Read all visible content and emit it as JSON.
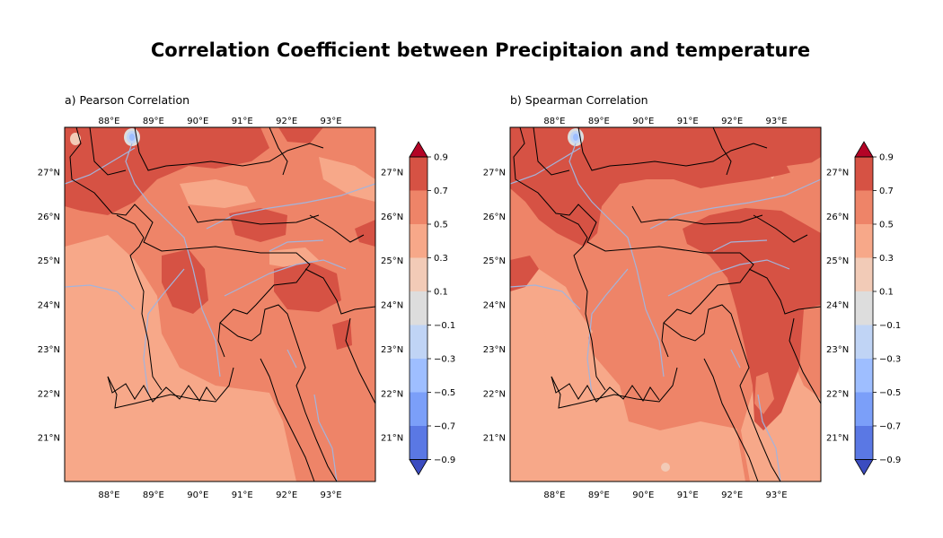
{
  "title": "Correlation Coefficient between Precipitaion and temperature",
  "colors": {
    "levels": [
      "#3b4cc0",
      "#5a78e4",
      "#7b9ff9",
      "#9ebeff",
      "#c0d4f5",
      "#dddddd",
      "#f2cbb7",
      "#f7a889",
      "#ee8468",
      "#d65244",
      "#b40426"
    ],
    "boundaries": "#000000",
    "rivers": "#a3b4dc"
  },
  "chart_data": [
    {
      "type": "heatmap",
      "title": "a) Pearson Correlation",
      "x_ticks": [
        "88°E",
        "89°E",
        "90°E",
        "91°E",
        "92°E",
        "93°E"
      ],
      "y_ticks": [
        "27°N",
        "26°N",
        "25°N",
        "24°N",
        "23°N",
        "22°N",
        "21°N"
      ],
      "xlim": [
        87.0,
        94.0
      ],
      "ylim": [
        20.0,
        28.0
      ],
      "colorbar": {
        "ticks": [
          "0.9",
          "0.7",
          "0.5",
          "0.3",
          "0.1",
          "−0.1",
          "−0.3",
          "−0.5",
          "−0.7",
          "−0.9"
        ],
        "range": [
          -0.9,
          0.9
        ],
        "extend": "both"
      },
      "dominant_range": [
        0.3,
        0.7
      ],
      "min_region": {
        "lat": 27.8,
        "lon": 88.5,
        "value": -0.5
      }
    },
    {
      "type": "heatmap",
      "title": "b) Spearman Correlation",
      "x_ticks": [
        "88°E",
        "89°E",
        "90°E",
        "91°E",
        "92°E",
        "93°E"
      ],
      "y_ticks": [
        "27°N",
        "26°N",
        "25°N",
        "24°N",
        "23°N",
        "22°N",
        "21°N"
      ],
      "xlim": [
        87.0,
        94.0
      ],
      "ylim": [
        20.0,
        28.0
      ],
      "colorbar": {
        "ticks": [
          "0.9",
          "0.7",
          "0.5",
          "0.3",
          "0.1",
          "−0.1",
          "−0.3",
          "−0.5",
          "−0.7",
          "−0.9"
        ],
        "range": [
          -0.9,
          0.9
        ],
        "extend": "both"
      },
      "dominant_range": [
        0.3,
        0.9
      ],
      "min_region": {
        "lat": 27.8,
        "lon": 88.5,
        "value": -0.5
      }
    }
  ]
}
